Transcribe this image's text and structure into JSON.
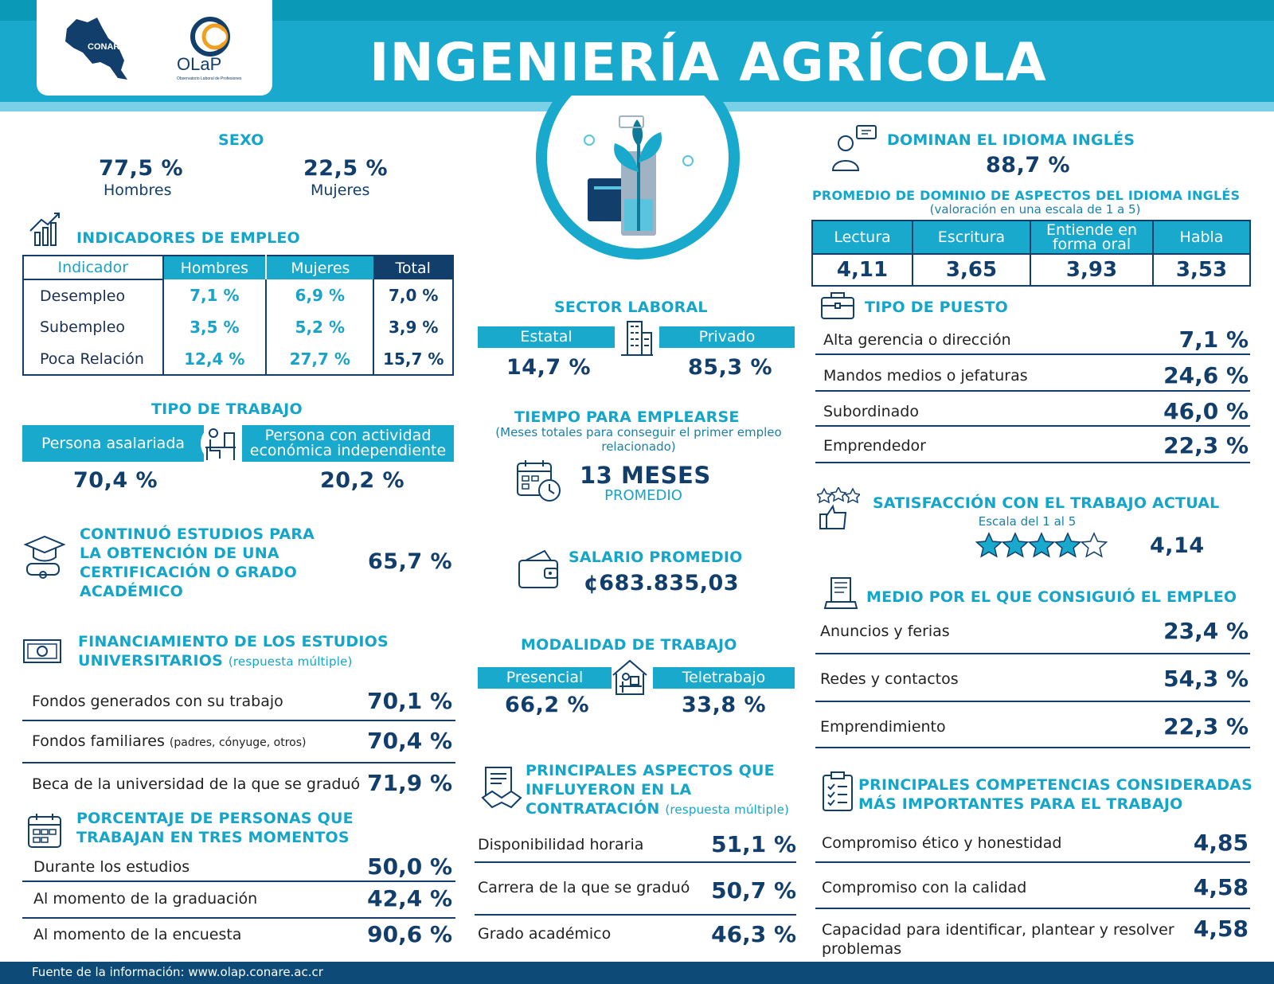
{
  "header": {
    "title": "INGENIERÍA AGRÍCOLA",
    "logo_conare": "CONARE",
    "logo_olap": "OLaP",
    "logo_olap_sub": "Observatorio Laboral de Profesiones"
  },
  "sexo": {
    "title": "SEXO",
    "hombres_value": "77,5 %",
    "hombres_label": "Hombres",
    "mujeres_value": "22,5 %",
    "mujeres_label": "Mujeres"
  },
  "empleo": {
    "title": "INDICADORES DE EMPLEO",
    "headers": [
      "Indicador",
      "Hombres",
      "Mujeres",
      "Total"
    ],
    "rows": [
      {
        "label": "Desempleo",
        "h": "7,1 %",
        "m": "6,9 %",
        "t": "7,0 %"
      },
      {
        "label": "Subempleo",
        "h": "3,5 %",
        "m": "5,2 %",
        "t": "3,9 %"
      },
      {
        "label": "Poca Relación",
        "h": "12,4 %",
        "m": "27,7 %",
        "t": "15,7 %"
      }
    ]
  },
  "tipo_trabajo": {
    "title": "TIPO DE TRABAJO",
    "left_label": "Persona asalariada",
    "right_label_1": "Persona con actividad",
    "right_label_2": "económica independiente",
    "left_value": "70,4 %",
    "right_value": "20,2 %"
  },
  "estudios": {
    "title_1": "CONTINUÓ ESTUDIOS PARA",
    "title_2": "LA OBTENCIÓN DE UNA",
    "title_3": "CERTIFICACIÓN O GRADO",
    "title_4": "ACADÉMICO",
    "value": "65,7 %"
  },
  "financiamiento": {
    "title_1": "FINANCIAMIENTO DE LOS ESTUDIOS",
    "title_2": "UNIVERSITARIOS",
    "title_note": "(respuesta múltiple)",
    "rows": [
      {
        "label": "Fondos generados con su trabajo",
        "note": "",
        "value": "70,1 %"
      },
      {
        "label": "Fondos familiares",
        "note": "(padres, cónyuge, otros)",
        "value": "70,4 %"
      },
      {
        "label": "Beca de la universidad de la que se graduó",
        "note": "",
        "value": "71,9 %"
      }
    ]
  },
  "momentos": {
    "title_1": "PORCENTAJE DE PERSONAS QUE",
    "title_2": "TRABAJAN EN TRES MOMENTOS",
    "rows": [
      {
        "label": "Durante los estudios",
        "value": "50,0 %"
      },
      {
        "label": "Al momento de la graduación",
        "value": "42,4 %"
      },
      {
        "label": "Al momento de la encuesta",
        "value": "90,6 %"
      }
    ]
  },
  "sector": {
    "title": "SECTOR LABORAL",
    "left_label": "Estatal",
    "right_label": "Privado",
    "left_value": "14,7 %",
    "right_value": "85,3 %"
  },
  "tiempo": {
    "title": "TIEMPO PARA EMPLEARSE",
    "sub_1": "(Meses totales para conseguir el primer empleo",
    "sub_2": "relacionado)",
    "value": "13 MESES",
    "value_sub": "PROMEDIO"
  },
  "salario": {
    "title": "SALARIO PROMEDIO",
    "value": "¢683.835,03"
  },
  "modalidad": {
    "title": "MODALIDAD DE TRABAJO",
    "left_label": "Presencial",
    "right_label": "Teletrabajo",
    "left_value": "66,2 %",
    "right_value": "33,8 %"
  },
  "contratacion": {
    "title_1": "PRINCIPALES ASPECTOS QUE",
    "title_2": "INFLUYERON EN LA",
    "title_3": "CONTRATACIÓN",
    "title_note": "(respuesta múltiple)",
    "rows": [
      {
        "label": "Disponibilidad horaria",
        "value": "51,1 %"
      },
      {
        "label": "Carrera de la que se graduó",
        "value": "50,7 %"
      },
      {
        "label": "Grado académico",
        "value": "46,3 %"
      }
    ]
  },
  "ingles": {
    "title": "DOMINAN EL IDIOMA INGLÉS",
    "value": "88,7 %",
    "sub_title": "PROMEDIO DE DOMINIO DE ASPECTOS DEL IDIOMA INGLÉS",
    "sub_note": "(valoración en una escala de 1 a 5)",
    "headers": [
      "Lectura",
      "Escritura",
      "Entiende en forma oral",
      "Habla"
    ],
    "values": [
      "4,11",
      "3,65",
      "3,93",
      "3,53"
    ]
  },
  "puesto": {
    "title": "TIPO DE PUESTO",
    "rows": [
      {
        "label": "Alta gerencia o dirección",
        "value": "7,1 %"
      },
      {
        "label": "Mandos medios o jefaturas",
        "value": "24,6 %"
      },
      {
        "label": "Subordinado",
        "value": "46,0 %"
      },
      {
        "label": "Emprendedor",
        "value": "22,3 %"
      }
    ]
  },
  "satisfaccion": {
    "title": "SATISFACCIÓN CON EL TRABAJO ACTUAL",
    "scale": "Escala del 1 al 5",
    "value": "4,14",
    "rating": 4.14
  },
  "medio": {
    "title": "MEDIO POR EL QUE CONSIGUIÓ EL EMPLEO",
    "rows": [
      {
        "label": "Anuncios y ferias",
        "value": "23,4 %"
      },
      {
        "label": "Redes y contactos",
        "value": "54,3 %"
      },
      {
        "label": "Emprendimiento",
        "value": "22,3 %"
      }
    ]
  },
  "competencias": {
    "title_1": "PRINCIPALES COMPETENCIAS CONSIDERADAS",
    "title_2": "MÁS IMPORTANTES PARA EL TRABAJO",
    "rows": [
      {
        "label": "Compromiso ético y honestidad",
        "value": "4,85"
      },
      {
        "label": "Compromiso con la calidad",
        "value": "4,58"
      },
      {
        "label": "Capacidad para identificar, plantear y resolver",
        "label_2": "problemas",
        "value": "4,58"
      }
    ]
  },
  "footer": {
    "text": "Fuente de la información: www.olap.conare.ac.cr"
  },
  "colors": {
    "cyan": "#18a9cc",
    "navy": "#123e6b",
    "title_cyan": "#14a5c9"
  }
}
